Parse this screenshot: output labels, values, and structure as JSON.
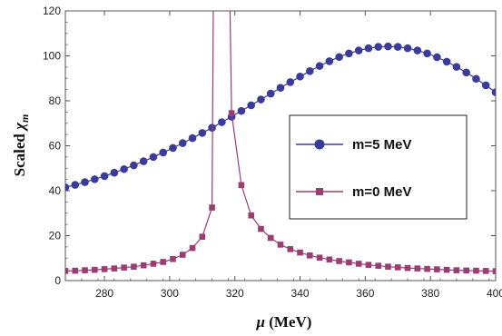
{
  "chart_data": {
    "type": "line",
    "xlabel_symbol": "μ",
    "xlabel_unit": " (MeV)",
    "ylabel_prefix": "Scaled ",
    "ylabel_symbol": "χ",
    "ylabel_subscript": "m",
    "xlim": [
      268,
      400
    ],
    "ylim": [
      0,
      120
    ],
    "x_ticks": [
      280,
      300,
      320,
      340,
      360,
      380,
      400
    ],
    "y_ticks": [
      0,
      20,
      40,
      60,
      80,
      100,
      120
    ],
    "grid": false,
    "legend_position": "right",
    "series": [
      {
        "name": "m=5 MeV",
        "color": "#3b3b9a",
        "marker": "circle",
        "x": [
          268,
          271,
          274,
          277,
          280,
          283,
          286,
          289,
          292,
          295,
          298,
          301,
          304,
          307,
          310,
          313,
          316,
          319,
          322,
          325,
          328,
          331,
          334,
          337,
          340,
          343,
          346,
          349,
          352,
          355,
          358,
          361,
          364,
          367,
          370,
          373,
          376,
          379,
          382,
          385,
          388,
          391,
          394,
          397,
          400
        ],
        "y": [
          41.5,
          42.6,
          43.8,
          45.1,
          46.5,
          48.0,
          49.6,
          51.3,
          53.1,
          55.0,
          57.0,
          59.0,
          61.2,
          63.4,
          65.7,
          68.0,
          70.5,
          72.9,
          75.5,
          78.0,
          80.6,
          83.2,
          85.8,
          88.3,
          90.8,
          93.2,
          95.5,
          97.6,
          99.5,
          101.1,
          102.4,
          103.4,
          104.0,
          104.2,
          104.0,
          103.4,
          102.4,
          101.1,
          99.4,
          97.4,
          95.1,
          92.6,
          89.8,
          86.9,
          83.8
        ]
      },
      {
        "name": "m=0 MeV",
        "color": "#9b3d72",
        "marker": "square",
        "x": [
          268,
          271,
          274,
          277,
          280,
          283,
          286,
          289,
          292,
          295,
          298,
          301,
          304,
          307,
          310,
          313,
          316,
          319,
          322,
          325,
          328,
          331,
          334,
          337,
          340,
          343,
          346,
          349,
          352,
          355,
          358,
          361,
          364,
          367,
          370,
          373,
          376,
          379,
          382,
          385,
          388,
          391,
          394,
          397,
          400
        ],
        "y": [
          4.3,
          4.4,
          4.6,
          4.8,
          5.1,
          5.4,
          5.8,
          6.2,
          6.8,
          7.5,
          8.3,
          9.6,
          11.5,
          14.5,
          19.5,
          32.5,
          62.5,
          74.5,
          42.5,
          29.0,
          23.0,
          19.0,
          16.0,
          14.0,
          12.5,
          11.2,
          10.2,
          9.4,
          8.7,
          8.1,
          7.5,
          7.0,
          6.6,
          6.2,
          5.9,
          5.6,
          5.4,
          5.2,
          5.0,
          4.8,
          4.6,
          4.5,
          4.4,
          4.3,
          4.2
        ]
      }
    ]
  }
}
